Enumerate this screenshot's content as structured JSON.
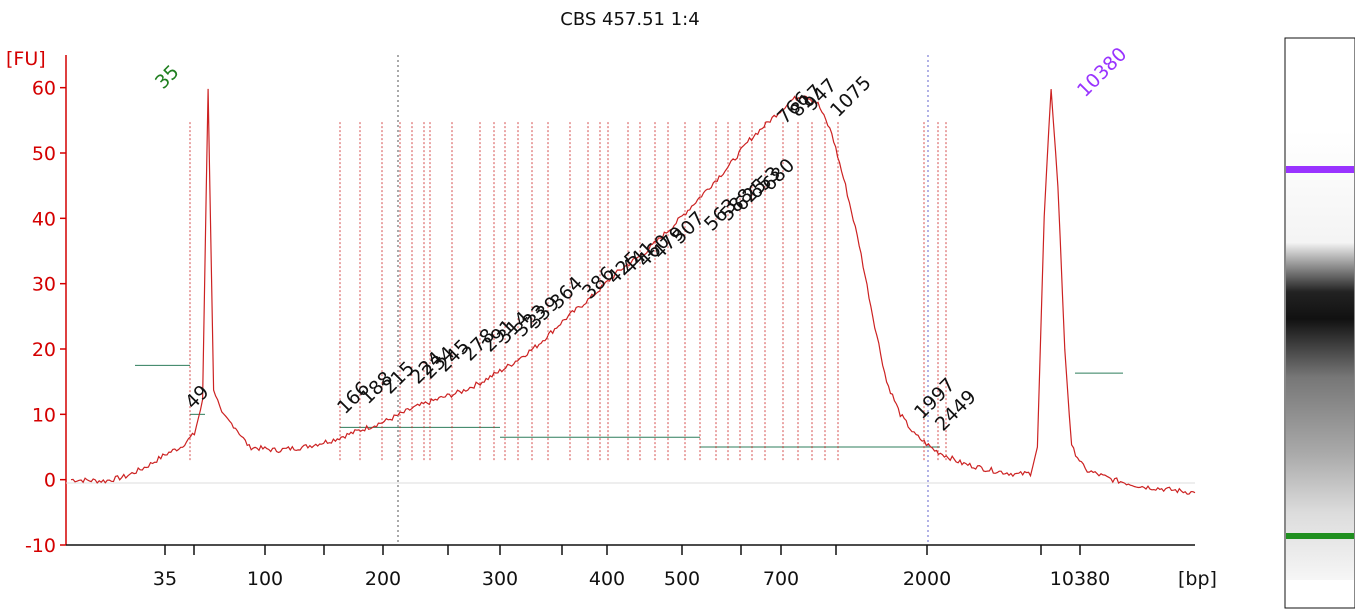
{
  "chart_data": {
    "type": "line",
    "title": "CBS 457.51 1:4",
    "ylabel": "[FU]",
    "xlabel": "[bp]",
    "ylim": [
      -10,
      65
    ],
    "yticks": [
      -10,
      0,
      10,
      20,
      30,
      40,
      50,
      60
    ],
    "xticks": [
      "35",
      "100",
      "200",
      "300",
      "400",
      "500",
      "700",
      "2000",
      "10380"
    ],
    "grid": false,
    "colors": {
      "trace": "#cc2222",
      "axis": "#d40000",
      "lower_marker": "#22aa22",
      "upper_marker": "#9933ff",
      "baseline": "#2e7d5b"
    },
    "marker_labels": [
      {
        "label": "35",
        "role": "lower marker",
        "height": 62
      },
      {
        "label": "10380",
        "role": "upper marker",
        "height": 60
      }
    ],
    "peak_labels": [
      "49",
      "166",
      "188",
      "215",
      "224",
      "234",
      "245",
      "278",
      "291",
      "314",
      "323",
      "339",
      "364",
      "386",
      "425",
      "441",
      "460",
      "479",
      "507",
      "563",
      "588",
      "625",
      "653",
      "680",
      "766",
      "817",
      "947",
      "1075",
      "1997",
      "2449"
    ],
    "series": [
      {
        "values": [
          [
            0,
            0
          ],
          [
            0.25,
            -0.2
          ],
          [
            0.4,
            0.5
          ],
          [
            0.55,
            2
          ],
          [
            0.7,
            4
          ],
          [
            0.8,
            5
          ],
          [
            0.9,
            7
          ],
          [
            0.96,
            12
          ],
          [
            1.0,
            60
          ],
          [
            1.04,
            14
          ],
          [
            1.1,
            10
          ],
          [
            1.2,
            8
          ],
          [
            1.3,
            5
          ],
          [
            1.5,
            4.5
          ],
          [
            1.7,
            5
          ],
          [
            1.9,
            6
          ],
          [
            2.1,
            7.5
          ],
          [
            2.3,
            9
          ],
          [
            2.5,
            11
          ],
          [
            2.7,
            12.5
          ],
          [
            2.85,
            13.5
          ],
          [
            3.0,
            15
          ],
          [
            3.2,
            17.5
          ],
          [
            3.4,
            20.5
          ],
          [
            3.6,
            24.5
          ],
          [
            3.8,
            28
          ],
          [
            4.0,
            32
          ],
          [
            4.2,
            35
          ],
          [
            4.4,
            39
          ],
          [
            4.6,
            43.5
          ],
          [
            4.8,
            48
          ],
          [
            4.95,
            52
          ],
          [
            5.1,
            55
          ],
          [
            5.25,
            58
          ],
          [
            5.35,
            59
          ],
          [
            5.45,
            57.5
          ],
          [
            5.55,
            53
          ],
          [
            5.65,
            45
          ],
          [
            5.75,
            36
          ],
          [
            5.85,
            25
          ],
          [
            5.95,
            15
          ],
          [
            6.05,
            10
          ],
          [
            6.15,
            7
          ],
          [
            6.3,
            4.5
          ],
          [
            6.5,
            2.5
          ],
          [
            6.7,
            1.5
          ],
          [
            6.9,
            0.8
          ],
          [
            7.0,
            1
          ],
          [
            7.05,
            5
          ],
          [
            7.1,
            40
          ],
          [
            7.15,
            60
          ],
          [
            7.2,
            45
          ],
          [
            7.25,
            20
          ],
          [
            7.3,
            5
          ],
          [
            7.4,
            1.5
          ],
          [
            7.6,
            0
          ],
          [
            7.8,
            -1
          ],
          [
            8.0,
            -1.5
          ],
          [
            8.2,
            -2
          ]
        ]
      }
    ]
  }
}
